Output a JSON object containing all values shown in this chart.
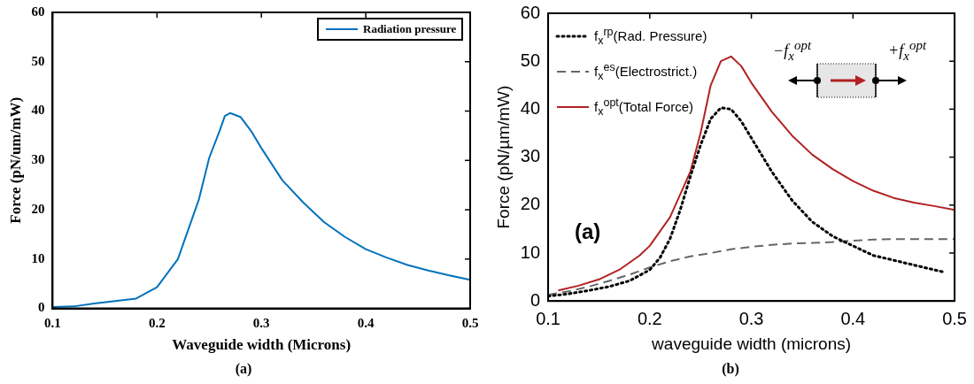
{
  "chart_data": [
    {
      "type": "line",
      "xlabel": "Waveguide width (Microns)",
      "ylabel": "Force (pN/um/mW)",
      "xlim": [
        0.1,
        0.5
      ],
      "xticks": [
        0.1,
        0.2,
        0.3,
        0.4,
        0.5
      ],
      "ylim": [
        0,
        60
      ],
      "yticks": [
        0,
        10,
        20,
        30,
        40,
        50,
        60
      ],
      "grid": false,
      "legend": "top right",
      "marker": "none",
      "annotations": [
        "(a)"
      ],
      "series": [
        {
          "name": "Radiation pressure",
          "color": "#0072bd",
          "line_style": "solid",
          "x": [
            0.1,
            0.12,
            0.14,
            0.16,
            0.18,
            0.2,
            0.22,
            0.24,
            0.25,
            0.26,
            0.265,
            0.27,
            0.28,
            0.29,
            0.3,
            0.32,
            0.34,
            0.36,
            0.38,
            0.4,
            0.42,
            0.44,
            0.46,
            0.48,
            0.5
          ],
          "values": [
            0.3,
            0.4,
            1.0,
            1.5,
            2.0,
            4.3,
            10,
            22,
            30.5,
            36,
            39,
            39.6,
            38.8,
            36,
            32.5,
            26,
            21.5,
            17.5,
            14.5,
            12,
            10.3,
            8.8,
            7.7,
            6.7,
            5.8
          ]
        }
      ]
    },
    {
      "type": "line",
      "xlabel": "waveguide width (microns)",
      "ylabel": "Force (pN/µm/mW)",
      "xlim": [
        0.1,
        0.5
      ],
      "xticks": [
        0.1,
        0.2,
        0.3,
        0.4,
        0.5
      ],
      "ylim": [
        0,
        60
      ],
      "yticks": [
        0,
        10,
        20,
        30,
        40,
        50,
        60
      ],
      "grid": false,
      "legend": "top left",
      "marker": "none",
      "annotations": [
        "(a)",
        "−f$_{x}$$^{opt}$",
        "+f$_{x}$$^{opt}$",
        "(b)"
      ],
      "series": [
        {
          "name": "f$_{x}$$^{rp}$(Rad. Pressure)",
          "color": "#000000",
          "line_style": "dotted",
          "x": [
            0.1,
            0.12,
            0.14,
            0.16,
            0.18,
            0.2,
            0.21,
            0.22,
            0.23,
            0.24,
            0.25,
            0.26,
            0.27,
            0.28,
            0.29,
            0.3,
            0.32,
            0.34,
            0.36,
            0.38,
            0.4,
            0.42,
            0.44,
            0.46,
            0.48,
            0.49
          ],
          "values": [
            1,
            1.5,
            2.2,
            3,
            4.2,
            6.5,
            9,
            13,
            19,
            26,
            32.5,
            38,
            40.3,
            40,
            37.5,
            34,
            27,
            21,
            16.5,
            13.5,
            11.5,
            9.5,
            8.5,
            7.5,
            6.5,
            6
          ]
        },
        {
          "name": "f$_{x}$$^{es}$(Electrostrict.)",
          "color": "#666666",
          "line_style": "dashed",
          "x": [
            0.1,
            0.12,
            0.14,
            0.16,
            0.18,
            0.2,
            0.22,
            0.24,
            0.26,
            0.28,
            0.3,
            0.32,
            0.34,
            0.36,
            0.38,
            0.4,
            0.42,
            0.44,
            0.5
          ],
          "values": [
            1.3,
            2,
            3,
            4.2,
            5.5,
            7,
            8.3,
            9.3,
            10,
            10.8,
            11.3,
            11.7,
            12,
            12.1,
            12.3,
            12.6,
            12.8,
            12.9,
            12.9
          ]
        },
        {
          "name": "f$_{x}$$^{opt}$(Total Force)",
          "color": "#b22222",
          "line_style": "solid",
          "x": [
            0.11,
            0.13,
            0.15,
            0.17,
            0.19,
            0.2,
            0.22,
            0.24,
            0.25,
            0.26,
            0.27,
            0.28,
            0.29,
            0.3,
            0.32,
            0.34,
            0.36,
            0.38,
            0.4,
            0.42,
            0.44,
            0.46,
            0.48,
            0.5
          ],
          "values": [
            2.2,
            3.2,
            4.5,
            6.5,
            9.5,
            11.5,
            17.5,
            27,
            35,
            45,
            50,
            51,
            49,
            45.5,
            39.5,
            34.5,
            30.5,
            27.5,
            25,
            23,
            21.5,
            20.5,
            19.8,
            19
          ]
        }
      ]
    }
  ]
}
